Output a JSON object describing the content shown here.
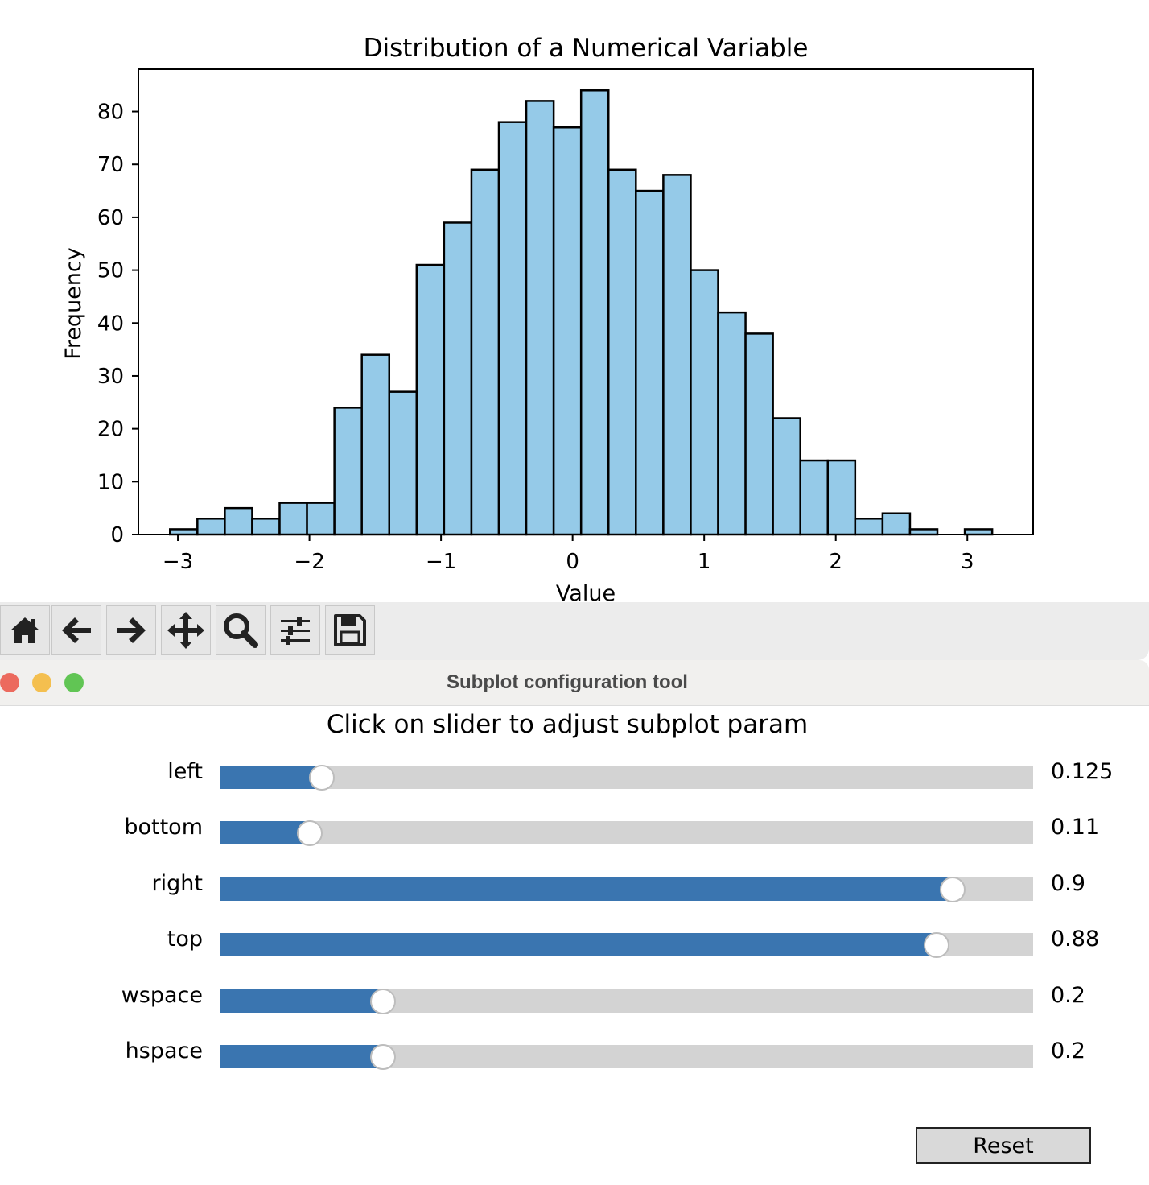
{
  "chart_data": {
    "type": "bar",
    "title": "Distribution of a Numerical Variable",
    "xlabel": "Value",
    "ylabel": "Frequency",
    "xlim": [
      -3.3,
      3.5
    ],
    "ylim": [
      0,
      88
    ],
    "x_ticks": [
      -3,
      -2,
      -1,
      0,
      1,
      2,
      3
    ],
    "y_ticks": [
      0,
      10,
      20,
      30,
      40,
      50,
      60,
      70,
      80
    ],
    "bin_start": -3.06,
    "bin_width": 0.2083,
    "counts": [
      1,
      3,
      5,
      3,
      6,
      6,
      24,
      34,
      27,
      51,
      59,
      69,
      78,
      82,
      77,
      84,
      69,
      65,
      68,
      50,
      42,
      38,
      22,
      14,
      14,
      3,
      4,
      1,
      0,
      1
    ],
    "bar_color": "#95cae8",
    "edge_color": "#000000",
    "grid": false
  },
  "toolbar": {
    "buttons": [
      {
        "name": "home-icon"
      },
      {
        "name": "back-arrow-icon"
      },
      {
        "name": "forward-arrow-icon"
      },
      {
        "name": "pan-icon"
      },
      {
        "name": "zoom-icon"
      },
      {
        "name": "subplot-config-icon"
      },
      {
        "name": "save-icon"
      }
    ]
  },
  "dialog": {
    "title": "Subplot configuration tool",
    "instruction": "Click on slider to adjust subplot param",
    "sliders": [
      {
        "label": "left",
        "value": 0.125,
        "display": "0.125"
      },
      {
        "label": "bottom",
        "value": 0.11,
        "display": "0.11"
      },
      {
        "label": "right",
        "value": 0.9,
        "display": "0.9"
      },
      {
        "label": "top",
        "value": 0.88,
        "display": "0.88"
      },
      {
        "label": "wspace",
        "value": 0.2,
        "display": "0.2",
        "max": 1.0
      },
      {
        "label": "hspace",
        "value": 0.2,
        "display": "0.2",
        "max": 1.0
      }
    ],
    "reset_label": "Reset"
  },
  "colors": {
    "slider_fill": "#3a75b0",
    "slider_track": "#d3d3d3",
    "close": "#ec6a5e",
    "minimize": "#f4bf4f",
    "zoom": "#61c554"
  }
}
